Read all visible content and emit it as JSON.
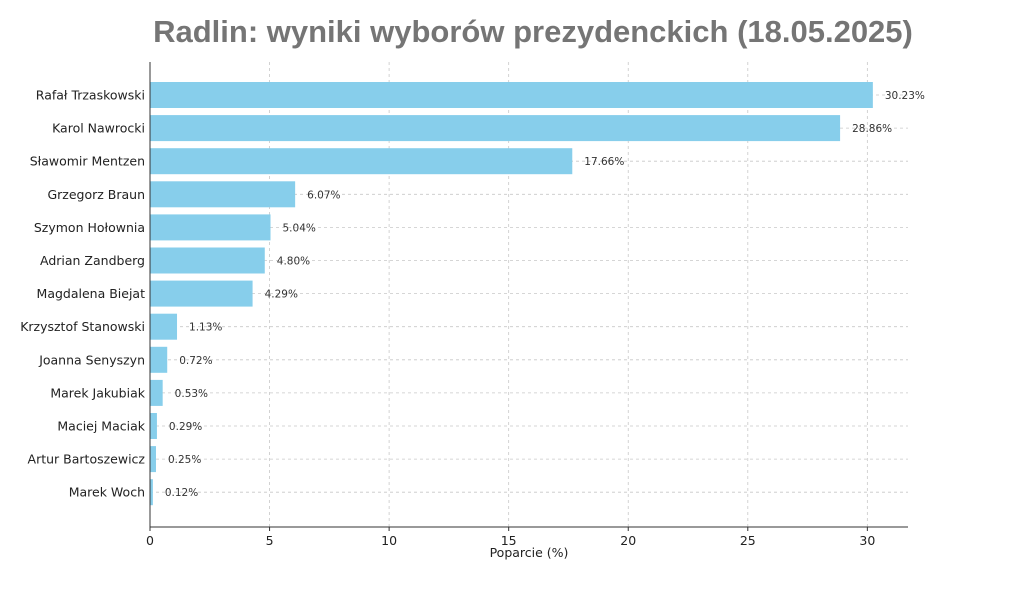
{
  "chart_data": {
    "type": "bar",
    "orientation": "horizontal",
    "title": "Radlin: wyniki wyborów prezydenckich (18.05.2025)",
    "xlabel": "Poparcie (%)",
    "ylabel": "",
    "xlim": [
      0,
      31.7
    ],
    "xticks": [
      0,
      5,
      10,
      15,
      20,
      25,
      30
    ],
    "grid": true,
    "bar_color": "#87ceeb",
    "title_color": "#757575",
    "categories": [
      "Rafał Trzaskowski",
      "Karol Nawrocki",
      "Sławomir Mentzen",
      "Grzegorz Braun",
      "Szymon Hołownia",
      "Adrian Zandberg",
      "Magdalena Biejat",
      "Krzysztof Stanowski",
      "Joanna Senyszyn",
      "Marek Jakubiak",
      "Maciej Maciak",
      "Artur Bartoszewicz",
      "Marek Woch"
    ],
    "values": [
      30.23,
      28.86,
      17.66,
      6.07,
      5.04,
      4.8,
      4.29,
      1.13,
      0.72,
      0.53,
      0.29,
      0.25,
      0.12
    ],
    "value_labels": [
      "30.23%",
      "28.86%",
      "17.66%",
      "6.07%",
      "5.04%",
      "4.80%",
      "4.29%",
      "1.13%",
      "0.72%",
      "0.53%",
      "0.29%",
      "0.25%",
      "0.12%"
    ]
  }
}
